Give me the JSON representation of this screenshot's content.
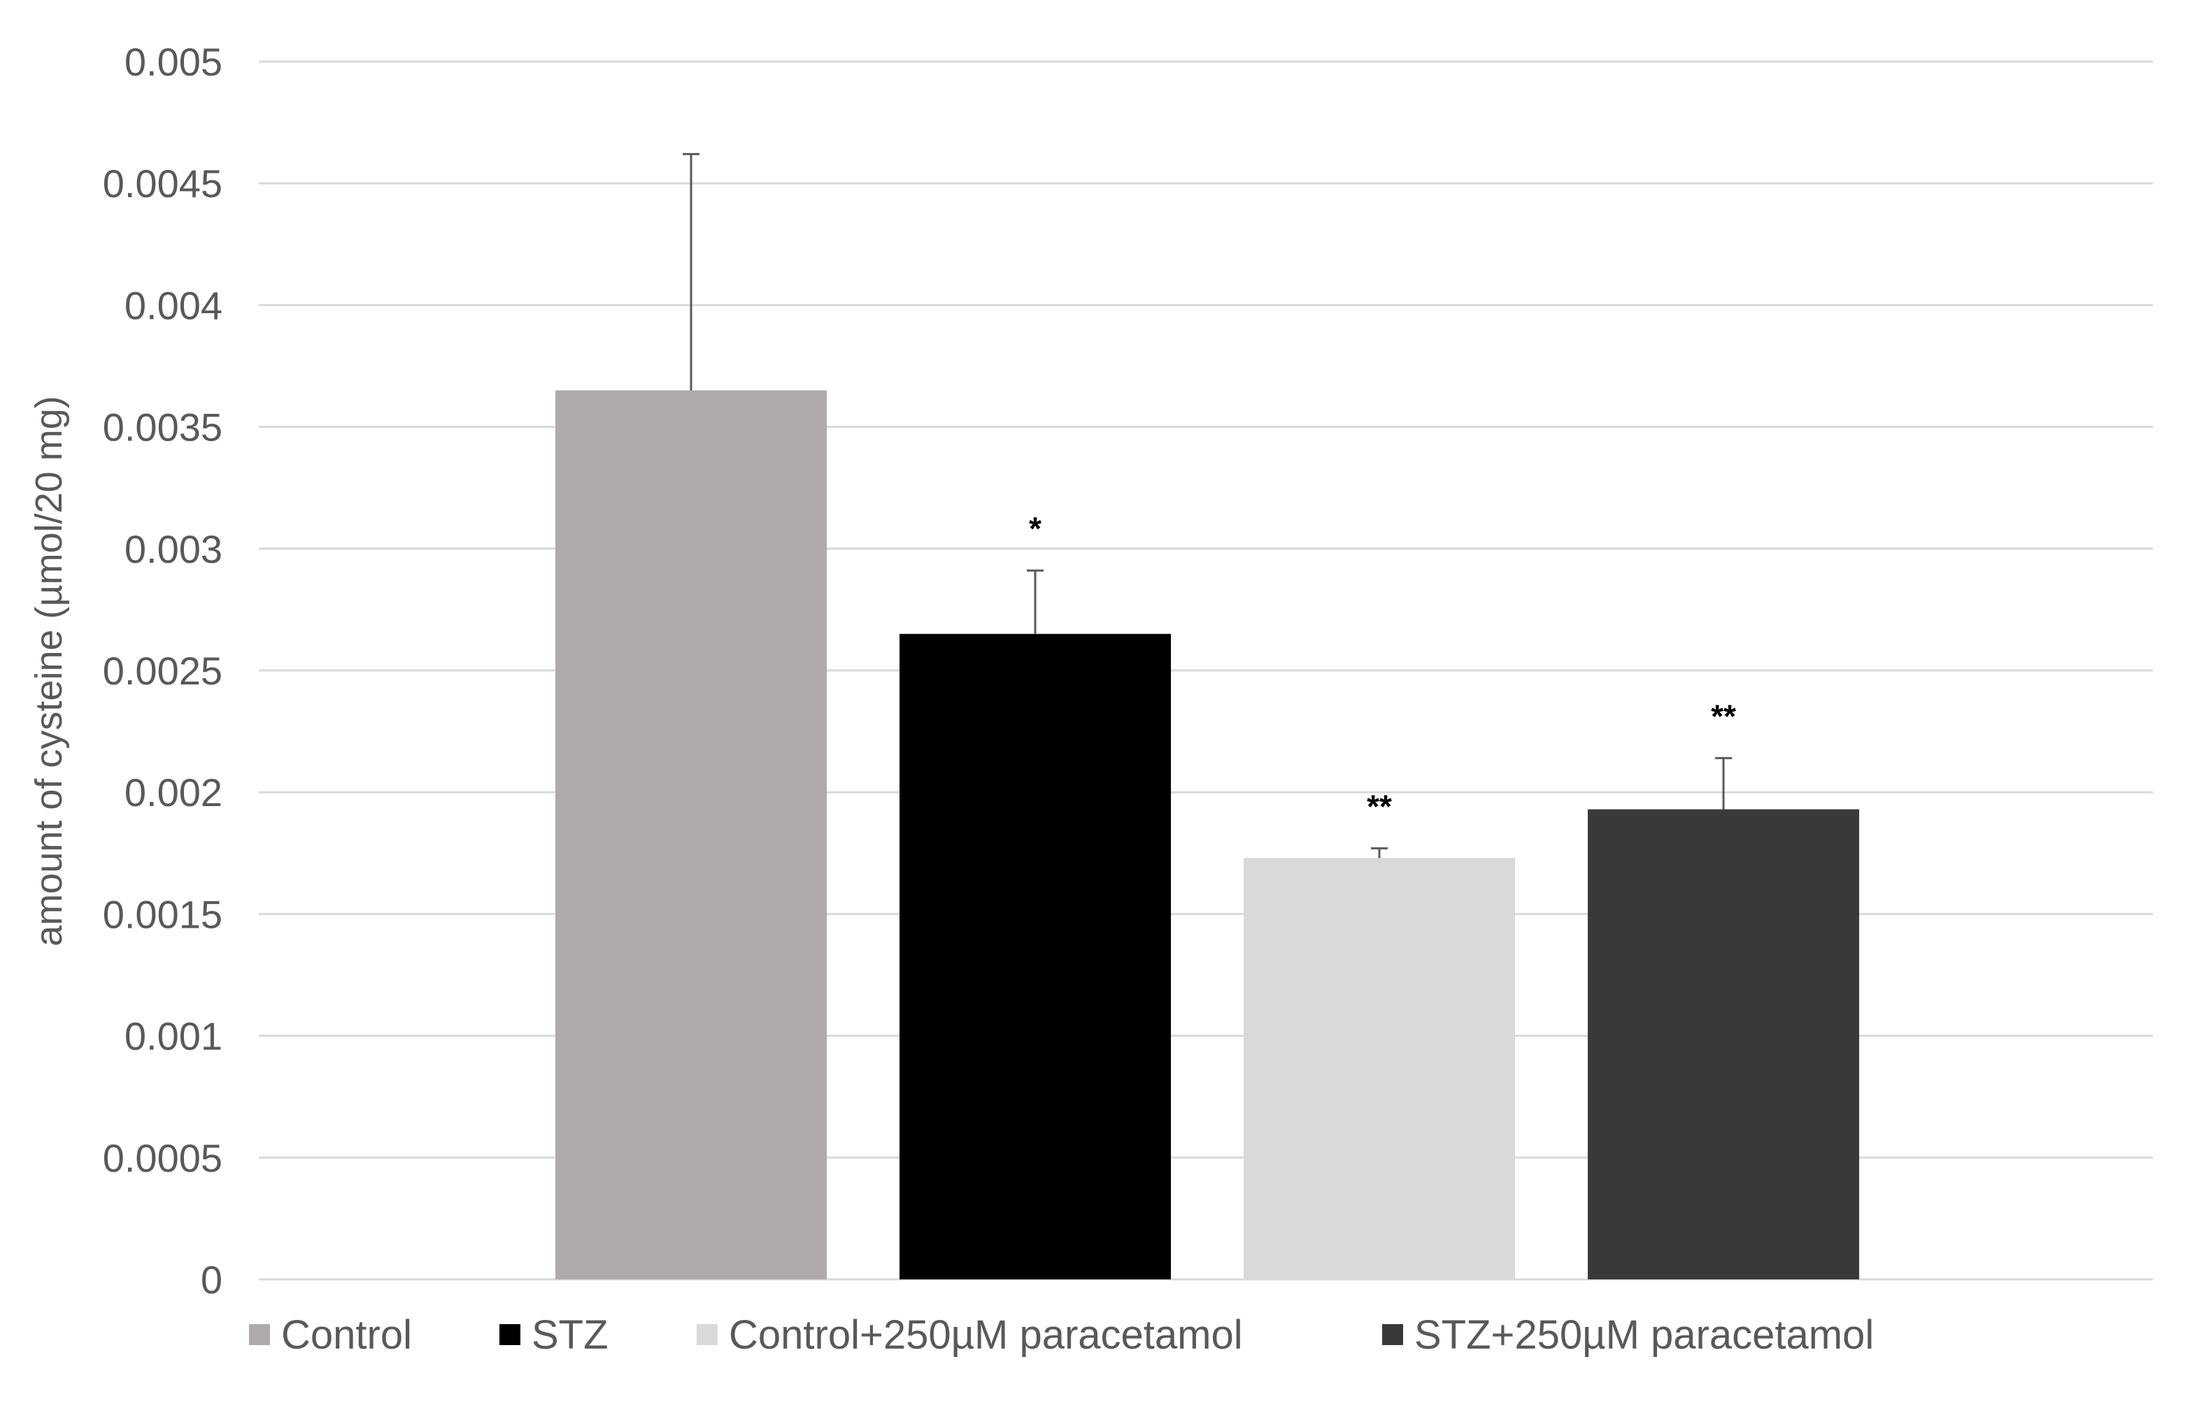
{
  "chart_data": {
    "type": "bar",
    "title": "",
    "xlabel": "",
    "ylabel": "amount of cysteine (µmol/20 mg)",
    "ylim": [
      0,
      0.005
    ],
    "y_ticks": [
      "0",
      "0.0005",
      "0.001",
      "0.0015",
      "0.002",
      "0.0025",
      "0.003",
      "0.0035",
      "0.004",
      "0.0045",
      "0.005"
    ],
    "grid": true,
    "legend_position": "bottom",
    "categories": [
      "Control",
      "STZ",
      "Control+250µM paracetamol",
      "STZ+250µM paracetamol"
    ],
    "values": [
      0.00365,
      0.00265,
      0.00173,
      0.00193
    ],
    "error_upper": [
      0.00097,
      0.00026,
      4e-05,
      0.00021
    ],
    "significance": [
      "",
      "*",
      "**",
      "**"
    ],
    "colors": [
      "#afabab",
      "#000000",
      "#d9d9d9",
      "#3b3838"
    ]
  }
}
